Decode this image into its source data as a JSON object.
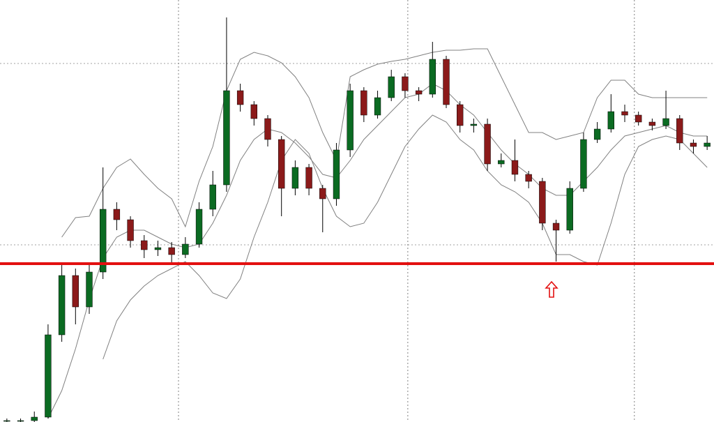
{
  "chart_data": {
    "type": "candlestick",
    "xlim": [
      0,
      52
    ],
    "xticks": [
      13,
      29.7,
      46.2
    ],
    "ylim": [
      0,
      60.5
    ],
    "yticks": [
      25.4,
      51.4
    ],
    "grid": true,
    "up_color": "#0b6b22",
    "down_color": "#8b1a1a",
    "wick_color": "#000000",
    "open": [
      0.2,
      0.2,
      0.2,
      0.7,
      12.5,
      21.0,
      16.5,
      21.5,
      30.5,
      29.0,
      26.0,
      24.7,
      25.0,
      24.0,
      25.5,
      30.5,
      34.0,
      47.5,
      45.5,
      43.5,
      40.5,
      33.5,
      36.5,
      33.5,
      32.0,
      39.0,
      47.5,
      44.0,
      46.5,
      49.5,
      47.5,
      47.0,
      52.0,
      45.5,
      42.5,
      42.7,
      37.0,
      37.5,
      35.5,
      34.5,
      28.5,
      27.5,
      33.5,
      40.5,
      42.0,
      44.5,
      44.0,
      43.0,
      42.5,
      43.5,
      40.0,
      39.5
    ],
    "high": [
      0.5,
      0.5,
      1.5,
      14.0,
      22.5,
      22.0,
      22.5,
      36.5,
      31.5,
      29.5,
      26.8,
      26.0,
      25.8,
      26.5,
      31.5,
      36.0,
      58.0,
      48.5,
      46.0,
      44.0,
      41.0,
      37.5,
      37.0,
      34.0,
      40.0,
      48.5,
      48.0,
      47.5,
      50.5,
      50.0,
      48.0,
      54.5,
      52.5,
      46.0,
      43.5,
      43.5,
      38.5,
      40.5,
      36.0,
      35.0,
      29.0,
      34.5,
      41.5,
      43.0,
      47.0,
      45.5,
      44.5,
      43.5,
      47.5,
      44.0,
      40.5,
      41.0
    ],
    "low": [
      0.0,
      0.0,
      0.0,
      0.5,
      11.5,
      14.0,
      15.5,
      20.5,
      27.5,
      25.0,
      23.5,
      23.8,
      22.8,
      23.5,
      25.0,
      29.5,
      33.0,
      44.5,
      42.5,
      39.5,
      29.5,
      32.5,
      32.5,
      27.2,
      31.0,
      38.0,
      43.0,
      43.5,
      46.0,
      46.5,
      46.0,
      46.5,
      45.0,
      41.5,
      41.5,
      36.0,
      36.5,
      34.5,
      33.5,
      27.5,
      23.0,
      27.0,
      33.0,
      40.0,
      41.5,
      43.0,
      42.5,
      41.8,
      42.0,
      39.0,
      38.5,
      39.0
    ],
    "close": [
      0.2,
      0.2,
      0.7,
      12.5,
      21.0,
      16.5,
      21.5,
      30.5,
      29.0,
      26.0,
      24.7,
      25.0,
      24.0,
      25.5,
      30.5,
      34.0,
      47.5,
      45.5,
      43.5,
      40.5,
      33.5,
      36.5,
      33.5,
      32.0,
      39.0,
      47.5,
      44.0,
      46.5,
      49.5,
      47.5,
      47.0,
      52.0,
      45.5,
      42.5,
      42.7,
      37.0,
      37.5,
      35.5,
      34.5,
      28.5,
      27.5,
      33.5,
      40.5,
      42.0,
      44.5,
      44.0,
      43.0,
      42.5,
      43.5,
      40.0,
      39.5,
      40.0
    ],
    "bands": [
      {
        "color": "#808080",
        "values": [
          null,
          null,
          null,
          null,
          26.5,
          29.3,
          29.5,
          33.5,
          36.5,
          37.7,
          35.5,
          33.5,
          32.0,
          28.0,
          34.5,
          39.5,
          47.5,
          52.0,
          53.0,
          52.5,
          51.5,
          49.5,
          46.5,
          41.5,
          37.5,
          49.5,
          50.5,
          51.3,
          51.7,
          52.0,
          52.5,
          53.0,
          53.3,
          53.3,
          53.5,
          53.5,
          49.5,
          45.5,
          41.5,
          41.5,
          40.5,
          41.0,
          41.5,
          46.5,
          49.0,
          49.0,
          47.0,
          46.5,
          46.5,
          46.5,
          46.5,
          46.5
        ]
      },
      {
        "color": "#808080",
        "values": [
          null,
          null,
          null,
          0.5,
          4.5,
          10.5,
          17.5,
          23.5,
          26.5,
          27.5,
          27.5,
          26.5,
          25.5,
          25.0,
          25.5,
          28.5,
          32.5,
          37.5,
          40.5,
          42.0,
          41.5,
          40.0,
          38.0,
          35.5,
          35.0,
          37.5,
          40.5,
          42.5,
          44.5,
          46.5,
          47.0,
          48.5,
          47.5,
          45.5,
          44.0,
          41.5,
          39.0,
          37.0,
          35.5,
          33.5,
          32.5,
          32.5,
          34.5,
          36.5,
          39.0,
          41.0,
          41.5,
          42.0,
          42.5,
          41.5,
          41.0,
          41.0
        ]
      },
      {
        "color": "#808080",
        "values": [
          null,
          null,
          null,
          null,
          null,
          null,
          null,
          9.0,
          14.5,
          17.5,
          19.5,
          21.0,
          22.0,
          23.0,
          21.0,
          18.5,
          17.7,
          20.5,
          26.5,
          31.5,
          37.5,
          40.5,
          38.5,
          33.5,
          29.5,
          28.0,
          28.5,
          31.5,
          35.5,
          39.5,
          42.0,
          44.0,
          43.0,
          40.5,
          39.0,
          36.0,
          34.0,
          33.0,
          31.5,
          28.5,
          24.0,
          24.0,
          23.0,
          22.5,
          28.5,
          35.5,
          39.5,
          40.5,
          41.0,
          40.5,
          38.5,
          36.5
        ]
      }
    ],
    "level": 22.7,
    "level_color": "#e31010"
  }
}
